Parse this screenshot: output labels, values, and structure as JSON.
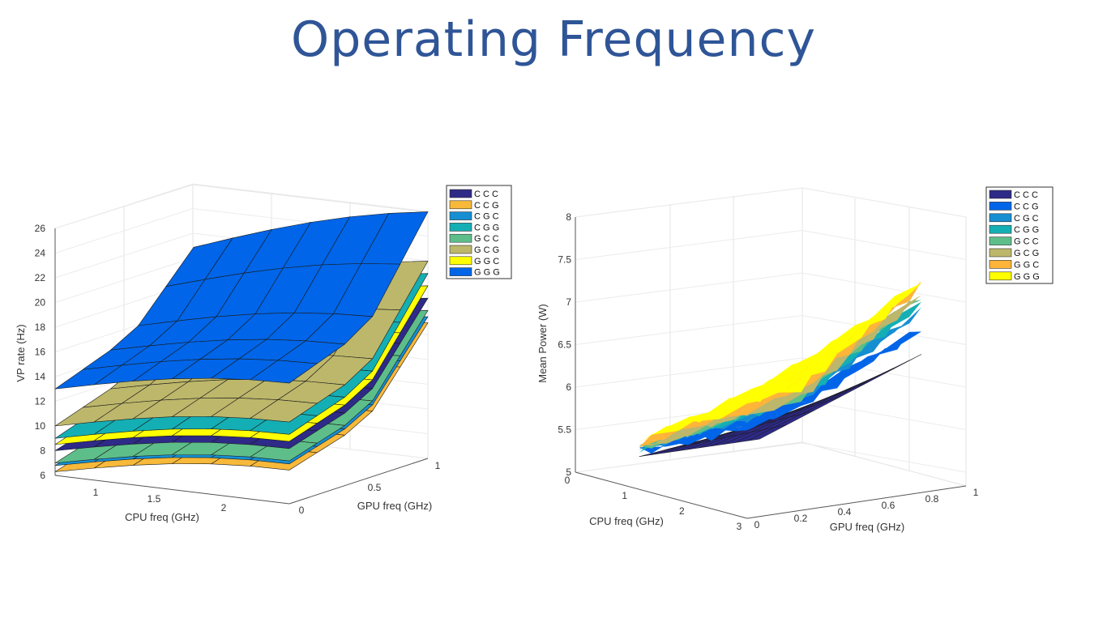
{
  "slide": {
    "title": "Operating Frequency"
  },
  "colors": {
    "title": "#2F5597",
    "legend_left": [
      "#2E2A87",
      "#F8B93A",
      "#168ED2",
      "#14AFB4",
      "#5EBE8A",
      "#BDB76B",
      "#FFFF00",
      "#0065E8"
    ],
    "legend_right": [
      "#2E2A87",
      "#0065E8",
      "#168ED2",
      "#14AFB4",
      "#5EBE8A",
      "#BDB76B",
      "#FFB43A",
      "#FFFF00"
    ]
  },
  "chart_data": [
    {
      "type": "surface",
      "xlabel": "CPU freq (GHz)",
      "ylabel": "GPU freq (GHz)",
      "zlabel": "VP rate (Hz)",
      "xticks": [
        "1",
        "1.5",
        "2"
      ],
      "yticks": [
        "0",
        "0.5",
        "1"
      ],
      "zticks": [
        "6",
        "8",
        "10",
        "12",
        "14",
        "16",
        "18",
        "20",
        "22",
        "24",
        "26"
      ],
      "zlim": [
        6,
        26
      ],
      "legend_position": "top-right",
      "grid": true,
      "legend": [
        "C  C  C",
        "C  C  G",
        "C  G  C",
        "C  G  G",
        "G  C  C",
        "G  C  G",
        "G  G  C",
        "G  G  G"
      ],
      "series": [
        {
          "name": "G  G  G",
          "approx_z_at_min_cpu_min_gpu": 13,
          "approx_z_at_max_cpu_max_gpu": 25
        },
        {
          "name": "G  C  G",
          "approx_z_at_min_cpu_min_gpu": 10,
          "approx_z_at_max_cpu_max_gpu": 21
        },
        {
          "name": "C  G  G",
          "approx_z_at_min_cpu_min_gpu": 9,
          "approx_z_at_max_cpu_max_gpu": 20
        },
        {
          "name": "G  G  C",
          "approx_z_at_min_cpu_min_gpu": 8.5,
          "approx_z_at_max_cpu_max_gpu": 19
        },
        {
          "name": "C  C  C",
          "approx_z_at_min_cpu_min_gpu": 8,
          "approx_z_at_max_cpu_max_gpu": 18
        },
        {
          "name": "G  C  C",
          "approx_z_at_min_cpu_min_gpu": 7,
          "approx_z_at_max_cpu_max_gpu": 17
        },
        {
          "name": "C  G  C",
          "approx_z_at_min_cpu_min_gpu": 6.8,
          "approx_z_at_max_cpu_max_gpu": 16.5
        },
        {
          "name": "C  C  G",
          "approx_z_at_min_cpu_min_gpu": 6.3,
          "approx_z_at_max_cpu_max_gpu": 16
        }
      ]
    },
    {
      "type": "surface",
      "xlabel": "CPU freq (GHz)",
      "ylabel": "GPU freq (GHz)",
      "zlabel": "Mean Power (W)",
      "xticks": [
        "0",
        "1",
        "2",
        "3"
      ],
      "yticks": [
        "0",
        "0.2",
        "0.4",
        "0.6",
        "0.8",
        "1"
      ],
      "zticks": [
        "5",
        "5.5",
        "6",
        "6.5",
        "7",
        "7.5",
        "8"
      ],
      "zlim": [
        5,
        8
      ],
      "legend_position": "top-right",
      "grid": true,
      "legend": [
        "C  C  C",
        "C  C  G",
        "C  G  C",
        "C  G  G",
        "G  C  C",
        "G  C  G",
        "G  G  C",
        "G  G  G"
      ],
      "series": [
        {
          "name": "C  C  C",
          "approx_z_min": 5.3,
          "approx_z_max": 6.6
        },
        {
          "name": "C  C  G",
          "approx_z_min": 5.35,
          "approx_z_max": 6.9
        },
        {
          "name": "C  G  C",
          "approx_z_min": 5.4,
          "approx_z_max": 7.1
        },
        {
          "name": "C  G  G",
          "approx_z_min": 5.4,
          "approx_z_max": 7.2
        },
        {
          "name": "G  C  C",
          "approx_z_min": 5.4,
          "approx_z_max": 7.3
        },
        {
          "name": "G  C  G",
          "approx_z_min": 5.4,
          "approx_z_max": 7.3
        },
        {
          "name": "G  G  C",
          "approx_z_min": 5.45,
          "approx_z_max": 7.4
        },
        {
          "name": "G  G  G",
          "approx_z_min": 5.5,
          "approx_z_max": 7.45
        }
      ]
    }
  ]
}
